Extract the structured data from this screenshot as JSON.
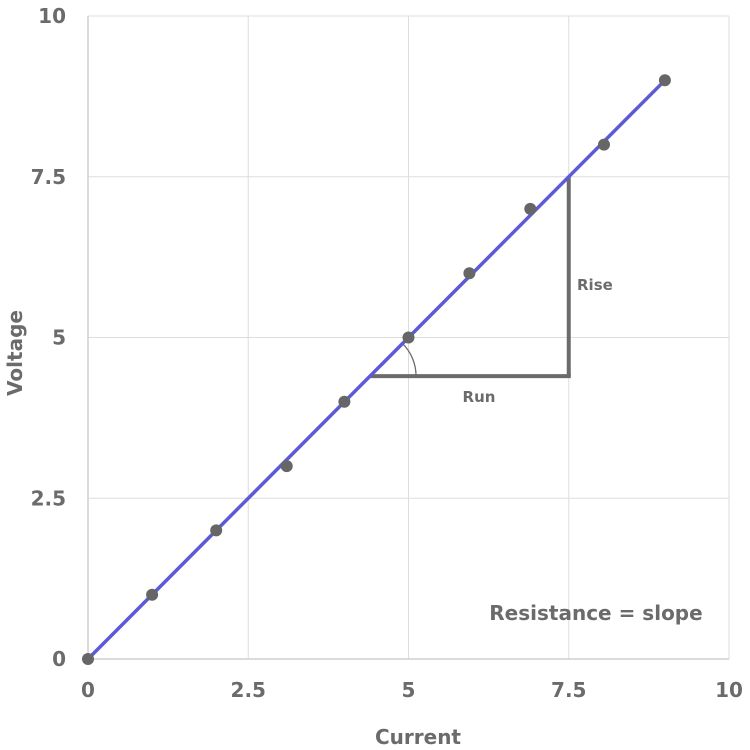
{
  "chart_data": {
    "type": "scatter",
    "xlabel": "Current",
    "ylabel": "Voltage",
    "xlim": [
      0,
      10
    ],
    "ylim": [
      0,
      10
    ],
    "x_ticks": [
      "0",
      "2.5",
      "5",
      "7.5",
      "10"
    ],
    "y_ticks": [
      "0",
      "2.5",
      "5",
      "7.5",
      "10"
    ],
    "grid": true,
    "points": [
      {
        "x": 0,
        "y": 0
      },
      {
        "x": 1,
        "y": 1
      },
      {
        "x": 2,
        "y": 2
      },
      {
        "x": 3.1,
        "y": 3
      },
      {
        "x": 4,
        "y": 4
      },
      {
        "x": 5,
        "y": 5
      },
      {
        "x": 5.95,
        "y": 6
      },
      {
        "x": 6.9,
        "y": 7
      },
      {
        "x": 8.05,
        "y": 8
      },
      {
        "x": 9,
        "y": 9
      }
    ],
    "fit_line": {
      "x": [
        0,
        9
      ],
      "y": [
        0,
        9
      ],
      "color": "#5b5bd6"
    },
    "marker_color": "#666666",
    "annotations": {
      "rise_label": "Rise",
      "run_label": "Run",
      "note": "Resistance = slope",
      "triangle": {
        "run_start_x": 4.4,
        "corner_x": 7.5,
        "base_y": 4.4,
        "top_y": 7.5
      }
    }
  }
}
